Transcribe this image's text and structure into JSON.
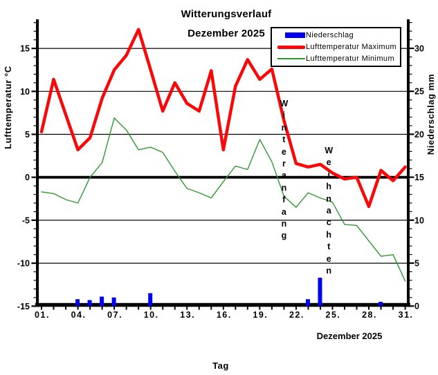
{
  "title": {
    "line1": "Witterungsverlauf",
    "line2": "Dezember 2025"
  },
  "legend": {
    "items": [
      {
        "label": "Niederschlag",
        "swatch": "bar",
        "color": "#0000EE"
      },
      {
        "label": "Lufttemperatur Maximum",
        "swatch": "thick-line",
        "color": "#FB0707"
      },
      {
        "label": "Lufttemperatur Minimum",
        "swatch": "thin-line",
        "color": "#2E9632"
      }
    ]
  },
  "axes": {
    "left": {
      "title": "Lufttemperatur °C",
      "unit": "°C",
      "tick_labels": [
        "15",
        "10",
        "5",
        "0",
        "-5",
        "-10",
        "-15"
      ],
      "tick_values": [
        15,
        10,
        5,
        0,
        -5,
        -10,
        -15
      ]
    },
    "right": {
      "title": "Niederschlag  mm",
      "unit": "mm",
      "tick_labels": [
        "30",
        "25",
        "20",
        "15",
        "10",
        "5",
        "0"
      ],
      "tick_values": [
        30,
        25,
        20,
        15,
        10,
        5,
        0
      ]
    },
    "bottom": {
      "title": "Tag",
      "sub_label": "Dezember 2025",
      "tick_labels": [
        "01.",
        "04.",
        "07.",
        "10.",
        "13.",
        "16.",
        "19.",
        "22.",
        "25.",
        "28.",
        "31."
      ],
      "tick_days": [
        1,
        4,
        7,
        10,
        13,
        16,
        19,
        22,
        25,
        28,
        31
      ]
    }
  },
  "chart_data": {
    "type": "combo-bar-line",
    "x_label": "Tag",
    "x": [
      1,
      2,
      3,
      4,
      5,
      6,
      7,
      8,
      9,
      10,
      11,
      12,
      13,
      14,
      15,
      16,
      17,
      18,
      19,
      20,
      21,
      22,
      23,
      24,
      25,
      26,
      27,
      28,
      29,
      30,
      31
    ],
    "series": [
      {
        "name": "Niederschlag",
        "type": "bar",
        "axis": "right",
        "unit": "mm",
        "color": "#0000EE",
        "values": [
          0,
          0,
          0,
          0.8,
          0.7,
          1.1,
          1.0,
          0,
          0,
          1.5,
          0,
          0,
          0,
          0,
          0,
          0,
          0,
          0,
          0,
          0,
          0,
          0,
          0.8,
          3.3,
          0,
          0,
          0,
          0,
          0.5,
          0,
          0
        ]
      },
      {
        "name": "Lufttemperatur Maximum",
        "type": "line",
        "axis": "left",
        "unit": "°C",
        "color": "#FB0707",
        "stroke_width": 4.5,
        "values": [
          5.3,
          11.4,
          7.3,
          3.2,
          4.6,
          9.2,
          12.5,
          14.2,
          17.2,
          12.5,
          7.7,
          11.0,
          8.6,
          7.7,
          12.4,
          3.2,
          10.6,
          13.7,
          11.4,
          12.6,
          6.6,
          1.6,
          1.2,
          1.5,
          0.5,
          -0.2,
          0.0,
          -3.4,
          0.8,
          -0.4,
          1.2
        ]
      },
      {
        "name": "Lufttemperatur Minimum",
        "type": "line",
        "axis": "left",
        "unit": "°C",
        "color": "#2E9632",
        "stroke_width": 1.4,
        "values": [
          -1.7,
          -1.9,
          -2.6,
          -3.0,
          0.0,
          1.7,
          6.9,
          5.5,
          3.2,
          3.5,
          2.9,
          0.7,
          -1.3,
          -1.8,
          -2.4,
          -0.5,
          1.3,
          0.9,
          4.4,
          1.8,
          -2.2,
          -3.5,
          -1.8,
          -2.4,
          -2.9,
          -5.5,
          -5.6,
          -7.4,
          -9.2,
          -9.0,
          -12.1
        ]
      }
    ],
    "annotations": [
      {
        "text": "Winteranfang",
        "day": 21
      },
      {
        "text": "Weihnachten",
        "day": 24.7
      }
    ],
    "ylim_left": [
      -15,
      18.3
    ],
    "ylim_right": [
      0,
      33.3
    ],
    "grid": "horizontal-major",
    "zero_line": "thick",
    "legend_position": "top-right"
  }
}
